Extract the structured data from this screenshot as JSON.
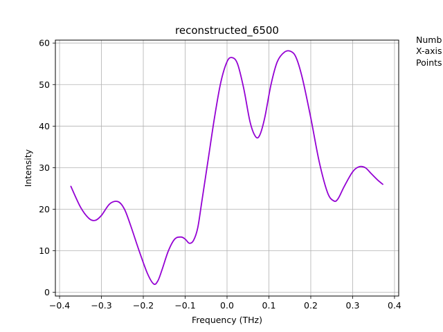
{
  "chart_data": {
    "type": "line",
    "title": "reconstructed_6500",
    "xlabel": "Frequency (THz)",
    "ylabel": "Intensity",
    "xlim": [
      -0.41,
      0.41
    ],
    "ylim": [
      -0.9,
      60.7
    ],
    "xticks": [
      -0.4,
      -0.3,
      -0.2,
      -0.1,
      0.0,
      0.1,
      0.2,
      0.3,
      0.4
    ],
    "xtick_labels": [
      "−0.4",
      "−0.3",
      "−0.2",
      "−0.1",
      "0.0",
      "0.1",
      "0.2",
      "0.3",
      "0.4"
    ],
    "yticks": [
      0,
      10,
      20,
      30,
      40,
      50,
      60
    ],
    "ytick_labels": [
      "0",
      "10",
      "20",
      "30",
      "40",
      "50",
      "60"
    ],
    "grid": true,
    "line_color": "#9400d3",
    "series": [
      {
        "x": [
          -0.373,
          -0.35,
          -0.33,
          -0.315,
          -0.3,
          -0.28,
          -0.26,
          -0.245,
          -0.23,
          -0.21,
          -0.19,
          -0.175,
          -0.165,
          -0.155,
          -0.14,
          -0.125,
          -0.11,
          -0.1,
          -0.09,
          -0.08,
          -0.07,
          -0.06,
          -0.045,
          -0.03,
          -0.015,
          0.0,
          0.012,
          0.025,
          0.04,
          0.055,
          0.068,
          0.078,
          0.09,
          0.105,
          0.12,
          0.137,
          0.152,
          0.165,
          0.18,
          0.2,
          0.22,
          0.24,
          0.255,
          0.265,
          0.28,
          0.3,
          0.315,
          0.33,
          0.345,
          0.36,
          0.372
        ],
        "y": [
          25.5,
          20.5,
          17.8,
          17.3,
          18.5,
          21.3,
          21.8,
          20.0,
          16.0,
          10.0,
          4.5,
          2.0,
          2.8,
          5.5,
          10.0,
          12.8,
          13.3,
          12.8,
          11.8,
          12.5,
          15.5,
          22.0,
          32.0,
          42.0,
          50.5,
          55.5,
          56.5,
          55.0,
          49.0,
          41.0,
          37.5,
          37.8,
          42.0,
          50.0,
          55.5,
          57.8,
          58.0,
          56.5,
          51.5,
          42.0,
          31.5,
          24.0,
          22.0,
          22.5,
          25.5,
          29.0,
          30.2,
          30.0,
          28.5,
          27.0,
          26.0
        ]
      }
    ]
  },
  "side_note": {
    "line1": "Numb",
    "line2": "X-axis",
    "line3": "Points"
  }
}
